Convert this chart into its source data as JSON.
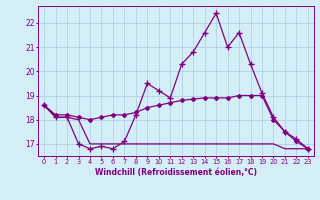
{
  "xlabel": "Windchill (Refroidissement éolien,°C)",
  "x": [
    0,
    1,
    2,
    3,
    4,
    5,
    6,
    7,
    8,
    9,
    10,
    11,
    12,
    13,
    14,
    15,
    16,
    17,
    18,
    19,
    20,
    21,
    22,
    23
  ],
  "line1": [
    18.6,
    18.1,
    18.1,
    17.0,
    16.8,
    16.9,
    16.8,
    17.1,
    18.2,
    19.5,
    19.2,
    18.9,
    20.3,
    20.8,
    21.6,
    22.4,
    21.0,
    21.6,
    20.3,
    19.1,
    18.1,
    17.5,
    17.2,
    16.8
  ],
  "line2": [
    18.6,
    18.2,
    18.2,
    18.1,
    18.0,
    18.1,
    18.2,
    18.2,
    18.3,
    18.5,
    18.6,
    18.7,
    18.8,
    18.85,
    18.9,
    18.9,
    18.9,
    19.0,
    19.0,
    19.0,
    18.0,
    17.5,
    17.1,
    16.8
  ],
  "line3": [
    18.6,
    18.1,
    18.1,
    18.0,
    17.0,
    17.0,
    17.0,
    17.0,
    17.0,
    17.0,
    17.0,
    17.0,
    17.0,
    17.0,
    17.0,
    17.0,
    17.0,
    17.0,
    17.0,
    17.0,
    17.0,
    16.8,
    16.8,
    16.8
  ],
  "line_color": "#800080",
  "bg_color": "#d4eef7",
  "grid_color": "#aaccdd",
  "ylim": [
    16.5,
    22.7
  ],
  "yticks": [
    17,
    18,
    19,
    20,
    21,
    22
  ],
  "xticks": [
    0,
    1,
    2,
    3,
    4,
    5,
    6,
    7,
    8,
    9,
    10,
    11,
    12,
    13,
    14,
    15,
    16,
    17,
    18,
    19,
    20,
    21,
    22,
    23
  ]
}
